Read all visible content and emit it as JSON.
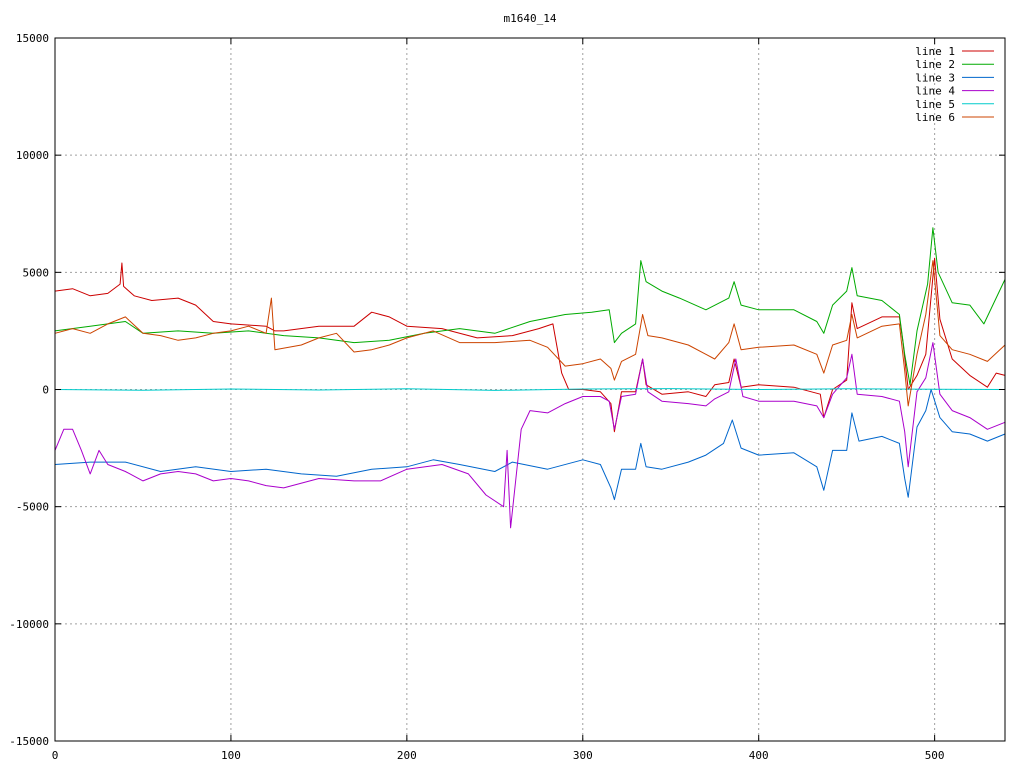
{
  "chart_data": {
    "type": "line",
    "title": "m1640_14",
    "xlabel": "",
    "ylabel": "",
    "xlim": [
      0,
      540
    ],
    "ylim": [
      -15000,
      15000
    ],
    "xticks": [
      0,
      100,
      200,
      300,
      400,
      500
    ],
    "yticks": [
      -15000,
      -10000,
      -5000,
      0,
      5000,
      10000,
      15000
    ],
    "grid": true,
    "legend_position": "top-right",
    "series": [
      {
        "name": "line 1",
        "color": "#cc0000",
        "points": [
          [
            0,
            4200
          ],
          [
            10,
            4300
          ],
          [
            20,
            4000
          ],
          [
            30,
            4100
          ],
          [
            37,
            4500
          ],
          [
            38,
            5400
          ],
          [
            39,
            4400
          ],
          [
            45,
            4000
          ],
          [
            55,
            3800
          ],
          [
            70,
            3900
          ],
          [
            80,
            3600
          ],
          [
            90,
            2900
          ],
          [
            100,
            2800
          ],
          [
            120,
            2700
          ],
          [
            125,
            2500
          ],
          [
            130,
            2500
          ],
          [
            150,
            2700
          ],
          [
            170,
            2700
          ],
          [
            180,
            3300
          ],
          [
            190,
            3100
          ],
          [
            200,
            2700
          ],
          [
            220,
            2600
          ],
          [
            240,
            2200
          ],
          [
            260,
            2300
          ],
          [
            275,
            2600
          ],
          [
            283,
            2800
          ],
          [
            288,
            700
          ],
          [
            292,
            0
          ],
          [
            300,
            0
          ],
          [
            310,
            -100
          ],
          [
            316,
            -600
          ],
          [
            318,
            -1800
          ],
          [
            322,
            -100
          ],
          [
            330,
            -100
          ],
          [
            334,
            1300
          ],
          [
            336,
            200
          ],
          [
            345,
            -200
          ],
          [
            360,
            -100
          ],
          [
            370,
            -300
          ],
          [
            375,
            200
          ],
          [
            383,
            300
          ],
          [
            386,
            1300
          ],
          [
            390,
            100
          ],
          [
            400,
            200
          ],
          [
            420,
            100
          ],
          [
            435,
            -200
          ],
          [
            437,
            -1200
          ],
          [
            442,
            0
          ],
          [
            450,
            400
          ],
          [
            453,
            3700
          ],
          [
            456,
            2600
          ],
          [
            470,
            3100
          ],
          [
            480,
            3100
          ],
          [
            482,
            2000
          ],
          [
            485,
            0
          ],
          [
            490,
            600
          ],
          [
            495,
            1500
          ],
          [
            500,
            5600
          ],
          [
            503,
            3000
          ],
          [
            510,
            1300
          ],
          [
            520,
            600
          ],
          [
            530,
            100
          ],
          [
            535,
            700
          ],
          [
            540,
            600
          ]
        ]
      },
      {
        "name": "line 2",
        "color": "#00aa00",
        "points": [
          [
            0,
            2500
          ],
          [
            20,
            2700
          ],
          [
            40,
            2900
          ],
          [
            50,
            2400
          ],
          [
            70,
            2500
          ],
          [
            90,
            2400
          ],
          [
            110,
            2500
          ],
          [
            130,
            2300
          ],
          [
            150,
            2200
          ],
          [
            170,
            2000
          ],
          [
            190,
            2100
          ],
          [
            210,
            2400
          ],
          [
            230,
            2600
          ],
          [
            250,
            2400
          ],
          [
            270,
            2900
          ],
          [
            290,
            3200
          ],
          [
            305,
            3300
          ],
          [
            315,
            3400
          ],
          [
            318,
            2000
          ],
          [
            322,
            2400
          ],
          [
            330,
            2800
          ],
          [
            333,
            5500
          ],
          [
            336,
            4600
          ],
          [
            345,
            4200
          ],
          [
            355,
            3900
          ],
          [
            370,
            3400
          ],
          [
            383,
            3900
          ],
          [
            386,
            4600
          ],
          [
            390,
            3600
          ],
          [
            400,
            3400
          ],
          [
            420,
            3400
          ],
          [
            433,
            2900
          ],
          [
            437,
            2400
          ],
          [
            442,
            3600
          ],
          [
            450,
            4200
          ],
          [
            453,
            5200
          ],
          [
            456,
            4000
          ],
          [
            470,
            3800
          ],
          [
            480,
            3200
          ],
          [
            483,
            1500
          ],
          [
            486,
            200
          ],
          [
            490,
            2500
          ],
          [
            496,
            4500
          ],
          [
            499,
            6900
          ],
          [
            502,
            5000
          ],
          [
            510,
            3700
          ],
          [
            520,
            3600
          ],
          [
            528,
            2800
          ],
          [
            540,
            4700
          ]
        ]
      },
      {
        "name": "line 3",
        "color": "#0066cc",
        "points": [
          [
            0,
            -3200
          ],
          [
            20,
            -3100
          ],
          [
            40,
            -3100
          ],
          [
            60,
            -3500
          ],
          [
            80,
            -3300
          ],
          [
            100,
            -3500
          ],
          [
            120,
            -3400
          ],
          [
            140,
            -3600
          ],
          [
            160,
            -3700
          ],
          [
            180,
            -3400
          ],
          [
            200,
            -3300
          ],
          [
            215,
            -3000
          ],
          [
            230,
            -3200
          ],
          [
            250,
            -3500
          ],
          [
            260,
            -3100
          ],
          [
            280,
            -3400
          ],
          [
            300,
            -3000
          ],
          [
            310,
            -3200
          ],
          [
            316,
            -4200
          ],
          [
            318,
            -4700
          ],
          [
            322,
            -3400
          ],
          [
            330,
            -3400
          ],
          [
            333,
            -2300
          ],
          [
            336,
            -3300
          ],
          [
            345,
            -3400
          ],
          [
            360,
            -3100
          ],
          [
            370,
            -2800
          ],
          [
            380,
            -2300
          ],
          [
            385,
            -1300
          ],
          [
            390,
            -2500
          ],
          [
            400,
            -2800
          ],
          [
            420,
            -2700
          ],
          [
            433,
            -3300
          ],
          [
            437,
            -4300
          ],
          [
            442,
            -2600
          ],
          [
            450,
            -2600
          ],
          [
            453,
            -1000
          ],
          [
            457,
            -2200
          ],
          [
            470,
            -2000
          ],
          [
            480,
            -2300
          ],
          [
            483,
            -3800
          ],
          [
            485,
            -4600
          ],
          [
            490,
            -1600
          ],
          [
            495,
            -900
          ],
          [
            498,
            0
          ],
          [
            503,
            -1200
          ],
          [
            510,
            -1800
          ],
          [
            520,
            -1900
          ],
          [
            530,
            -2200
          ],
          [
            540,
            -1900
          ]
        ]
      },
      {
        "name": "line 4",
        "color": "#aa00cc",
        "points": [
          [
            0,
            -2600
          ],
          [
            5,
            -1700
          ],
          [
            10,
            -1700
          ],
          [
            15,
            -2600
          ],
          [
            20,
            -3600
          ],
          [
            25,
            -2600
          ],
          [
            30,
            -3200
          ],
          [
            40,
            -3500
          ],
          [
            50,
            -3900
          ],
          [
            60,
            -3600
          ],
          [
            70,
            -3500
          ],
          [
            80,
            -3600
          ],
          [
            90,
            -3900
          ],
          [
            100,
            -3800
          ],
          [
            110,
            -3900
          ],
          [
            120,
            -4100
          ],
          [
            130,
            -4200
          ],
          [
            150,
            -3800
          ],
          [
            170,
            -3900
          ],
          [
            185,
            -3900
          ],
          [
            200,
            -3400
          ],
          [
            220,
            -3200
          ],
          [
            235,
            -3600
          ],
          [
            245,
            -4500
          ],
          [
            255,
            -5000
          ],
          [
            257,
            -2600
          ],
          [
            259,
            -5900
          ],
          [
            262,
            -3800
          ],
          [
            265,
            -1700
          ],
          [
            270,
            -900
          ],
          [
            280,
            -1000
          ],
          [
            290,
            -600
          ],
          [
            300,
            -300
          ],
          [
            310,
            -300
          ],
          [
            315,
            -500
          ],
          [
            318,
            -1700
          ],
          [
            322,
            -300
          ],
          [
            330,
            -200
          ],
          [
            334,
            1300
          ],
          [
            337,
            -100
          ],
          [
            345,
            -500
          ],
          [
            360,
            -600
          ],
          [
            370,
            -700
          ],
          [
            375,
            -400
          ],
          [
            383,
            -100
          ],
          [
            387,
            1300
          ],
          [
            391,
            -300
          ],
          [
            400,
            -500
          ],
          [
            420,
            -500
          ],
          [
            433,
            -700
          ],
          [
            437,
            -1200
          ],
          [
            442,
            -200
          ],
          [
            450,
            500
          ],
          [
            453,
            1500
          ],
          [
            456,
            -200
          ],
          [
            470,
            -300
          ],
          [
            480,
            -500
          ],
          [
            483,
            -1800
          ],
          [
            485,
            -3300
          ],
          [
            490,
            -100
          ],
          [
            495,
            500
          ],
          [
            499,
            2000
          ],
          [
            503,
            -200
          ],
          [
            510,
            -900
          ],
          [
            520,
            -1200
          ],
          [
            530,
            -1700
          ],
          [
            540,
            -1400
          ]
        ]
      },
      {
        "name": "line 5",
        "color": "#00cccc",
        "points": [
          [
            0,
            0
          ],
          [
            50,
            -30
          ],
          [
            100,
            20
          ],
          [
            150,
            -20
          ],
          [
            200,
            30
          ],
          [
            250,
            -40
          ],
          [
            300,
            20
          ],
          [
            350,
            40
          ],
          [
            400,
            0
          ],
          [
            450,
            30
          ],
          [
            500,
            10
          ],
          [
            540,
            0
          ]
        ]
      },
      {
        "name": "line 6",
        "color": "#cc4400",
        "points": [
          [
            0,
            2400
          ],
          [
            10,
            2600
          ],
          [
            20,
            2400
          ],
          [
            30,
            2800
          ],
          [
            40,
            3100
          ],
          [
            50,
            2400
          ],
          [
            60,
            2300
          ],
          [
            70,
            2100
          ],
          [
            80,
            2200
          ],
          [
            90,
            2400
          ],
          [
            100,
            2500
          ],
          [
            110,
            2700
          ],
          [
            120,
            2400
          ],
          [
            123,
            3900
          ],
          [
            125,
            1700
          ],
          [
            140,
            1900
          ],
          [
            150,
            2200
          ],
          [
            160,
            2400
          ],
          [
            170,
            1600
          ],
          [
            180,
            1700
          ],
          [
            190,
            1900
          ],
          [
            200,
            2200
          ],
          [
            215,
            2500
          ],
          [
            230,
            2000
          ],
          [
            250,
            2000
          ],
          [
            270,
            2100
          ],
          [
            280,
            1800
          ],
          [
            290,
            1000
          ],
          [
            300,
            1100
          ],
          [
            310,
            1300
          ],
          [
            316,
            900
          ],
          [
            318,
            400
          ],
          [
            322,
            1200
          ],
          [
            330,
            1500
          ],
          [
            334,
            3200
          ],
          [
            337,
            2300
          ],
          [
            345,
            2200
          ],
          [
            360,
            1900
          ],
          [
            370,
            1500
          ],
          [
            375,
            1300
          ],
          [
            383,
            2000
          ],
          [
            386,
            2800
          ],
          [
            390,
            1700
          ],
          [
            400,
            1800
          ],
          [
            420,
            1900
          ],
          [
            433,
            1500
          ],
          [
            437,
            700
          ],
          [
            442,
            1900
          ],
          [
            450,
            2100
          ],
          [
            453,
            3200
          ],
          [
            456,
            2200
          ],
          [
            470,
            2700
          ],
          [
            480,
            2800
          ],
          [
            483,
            800
          ],
          [
            485,
            -700
          ],
          [
            490,
            1500
          ],
          [
            495,
            3200
          ],
          [
            499,
            5500
          ],
          [
            503,
            2300
          ],
          [
            510,
            1700
          ],
          [
            520,
            1500
          ],
          [
            530,
            1200
          ],
          [
            540,
            1900
          ]
        ]
      }
    ]
  }
}
